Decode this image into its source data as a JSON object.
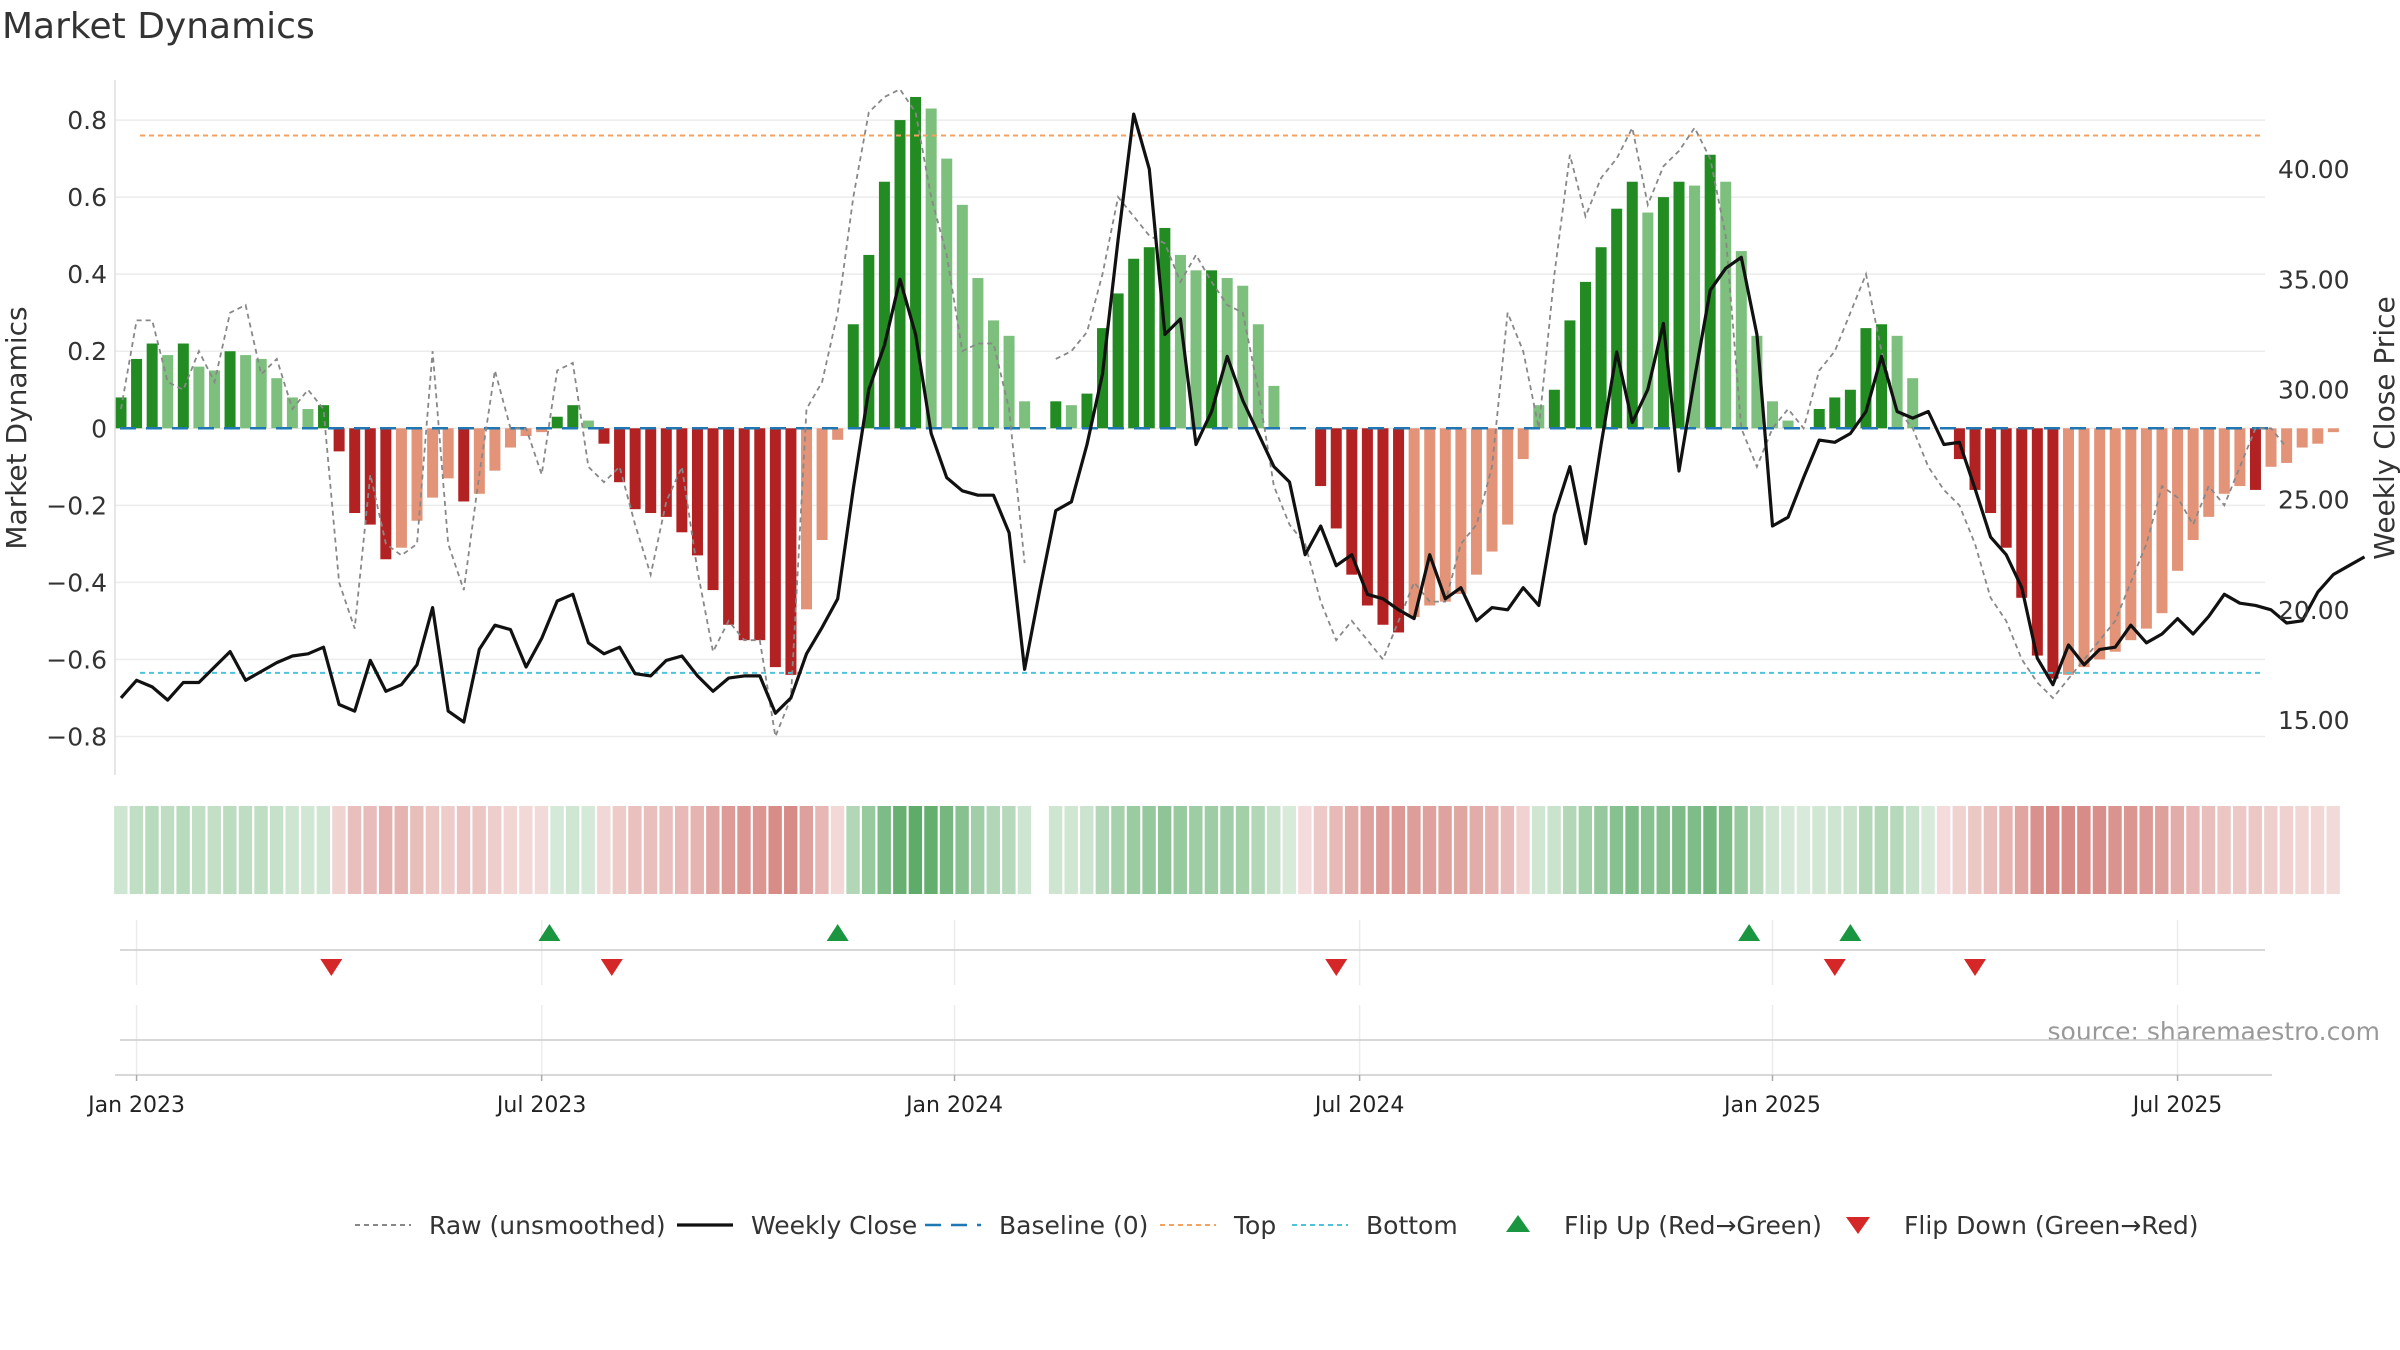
{
  "chart_data": {
    "type": "bar",
    "title": "Market Dynamics",
    "ylabel_left": "Market Dynamics",
    "ylabel_right": "Weekly Close Price",
    "source_note": "source: sharemaestro.com",
    "ylim_left": [
      -0.9,
      0.93
    ],
    "ylim_right": [
      12.5,
      44.5
    ],
    "left_ticks": [
      {
        "value": 0.8,
        "label": "0.8"
      },
      {
        "value": 0.6,
        "label": "0.6"
      },
      {
        "value": 0.4,
        "label": "0.4"
      },
      {
        "value": 0.2,
        "label": "0.2"
      },
      {
        "value": 0.0,
        "label": "0"
      },
      {
        "value": -0.2,
        "label": "−0.2"
      },
      {
        "value": -0.4,
        "label": "−0.4"
      },
      {
        "value": -0.6,
        "label": "−0.6"
      },
      {
        "value": -0.8,
        "label": "−0.8"
      }
    ],
    "right_ticks": [
      {
        "value": 40,
        "label": "40.00"
      },
      {
        "value": 35,
        "label": "35.00"
      },
      {
        "value": 30,
        "label": "30.00"
      },
      {
        "value": 25,
        "label": "25.00"
      },
      {
        "value": 20,
        "label": "20.00"
      },
      {
        "value": 15,
        "label": "15.00"
      }
    ],
    "x_ticks": [
      {
        "week": 1,
        "label": "Jan 2023"
      },
      {
        "week": 27,
        "label": "Jul 2023"
      },
      {
        "week": 53.5,
        "label": "Jan 2024"
      },
      {
        "week": 79.5,
        "label": "Jul 2024"
      },
      {
        "week": 106,
        "label": "Jan 2025"
      },
      {
        "week": 132,
        "label": "Jul 2025"
      }
    ],
    "top_level": 0.76,
    "bottom_level": -0.635,
    "colors": {
      "strong_up": "#228b22",
      "weak_up": "#7dbf7d",
      "strong_down": "#b22222",
      "weak_down": "#e39478",
      "close_line": "#111111",
      "raw_line": "#888888",
      "baseline": "#1f77b4",
      "top": "#f4a261",
      "bottom": "#4fc3d9",
      "flip_up": "#1a9641",
      "flip_down": "#d62728",
      "strip_up": "#4ea35a",
      "strip_down": "#c8605a"
    },
    "dynamics": [
      0.08,
      0.18,
      0.22,
      0.19,
      0.22,
      0.16,
      0.15,
      0.2,
      0.19,
      0.18,
      0.13,
      0.08,
      0.05,
      0.06,
      -0.06,
      -0.22,
      -0.25,
      -0.34,
      -0.31,
      -0.24,
      -0.18,
      -0.13,
      -0.19,
      -0.17,
      -0.11,
      -0.05,
      -0.02,
      -0.01,
      0.03,
      0.06,
      0.02,
      -0.04,
      -0.14,
      -0.21,
      -0.22,
      -0.23,
      -0.27,
      -0.33,
      -0.42,
      -0.51,
      -0.55,
      -0.55,
      -0.62,
      -0.64,
      -0.47,
      -0.29,
      -0.03,
      0.27,
      0.45,
      0.64,
      0.8,
      0.86,
      0.83,
      0.7,
      0.58,
      0.39,
      0.28,
      0.24,
      0.07,
      null,
      0.07,
      0.06,
      0.09,
      0.26,
      0.35,
      0.44,
      0.47,
      0.52,
      0.45,
      0.41,
      0.41,
      0.39,
      0.37,
      0.27,
      0.11,
      0.0,
      0.0,
      -0.15,
      -0.26,
      -0.38,
      -0.46,
      -0.51,
      -0.53,
      -0.49,
      -0.46,
      -0.45,
      -0.43,
      -0.38,
      -0.32,
      -0.25,
      -0.08,
      0.06,
      0.1,
      0.28,
      0.38,
      0.47,
      0.57,
      0.64,
      0.56,
      0.6,
      0.64,
      0.63,
      0.71,
      0.64,
      0.46,
      0.24,
      0.07,
      0.02,
      0.0,
      0.05,
      0.08,
      0.1,
      0.26,
      0.27,
      0.24,
      0.13,
      0.0,
      0.0,
      -0.08,
      -0.16,
      -0.22,
      -0.31,
      -0.44,
      -0.59,
      -0.65,
      -0.64,
      -0.62,
      -0.6,
      -0.58,
      -0.55,
      -0.52,
      -0.48,
      -0.37,
      -0.29,
      -0.23,
      -0.17,
      -0.15,
      -0.16,
      -0.1,
      -0.09,
      -0.05,
      -0.04,
      -0.01
    ],
    "raw": [
      0.05,
      0.28,
      0.28,
      0.12,
      0.1,
      0.2,
      0.12,
      0.3,
      0.32,
      0.14,
      0.18,
      0.05,
      0.1,
      0.05,
      -0.4,
      -0.52,
      -0.12,
      -0.3,
      -0.33,
      -0.3,
      0.2,
      -0.3,
      -0.42,
      -0.12,
      0.15,
      0.0,
      0.0,
      -0.12,
      0.15,
      0.17,
      -0.1,
      -0.14,
      -0.1,
      -0.25,
      -0.38,
      -0.19,
      -0.1,
      -0.37,
      -0.58,
      -0.5,
      -0.55,
      -0.55,
      -0.8,
      -0.7,
      0.05,
      0.12,
      0.3,
      0.6,
      0.82,
      0.86,
      0.88,
      0.82,
      0.6,
      0.45,
      0.2,
      0.22,
      0.22,
      0.05,
      -0.35,
      null,
      0.18,
      0.2,
      0.25,
      0.4,
      0.6,
      0.55,
      0.5,
      0.48,
      0.38,
      0.45,
      0.38,
      0.32,
      0.3,
      0.1,
      -0.15,
      -0.25,
      -0.3,
      -0.45,
      -0.55,
      -0.5,
      -0.55,
      -0.6,
      -0.5,
      -0.4,
      -0.45,
      -0.45,
      -0.3,
      -0.25,
      -0.1,
      0.3,
      0.2,
      0.0,
      0.4,
      0.71,
      0.55,
      0.65,
      0.7,
      0.78,
      0.58,
      0.68,
      0.72,
      0.78,
      0.7,
      0.5,
      0.0,
      -0.1,
      0.0,
      0.05,
      0.0,
      0.15,
      0.2,
      0.3,
      0.4,
      0.2,
      0.05,
      0.0,
      -0.1,
      -0.16,
      -0.2,
      -0.3,
      -0.44,
      -0.5,
      -0.6,
      -0.66,
      -0.7,
      -0.65,
      -0.6,
      -0.55,
      -0.5,
      -0.4,
      -0.3,
      -0.15,
      -0.18,
      -0.25,
      -0.15,
      -0.2,
      -0.1,
      0.0,
      0.0,
      -0.05
    ],
    "close": [
      16.0,
      16.8,
      16.5,
      15.9,
      16.7,
      16.7,
      17.4,
      18.1,
      16.8,
      17.2,
      17.6,
      17.9,
      18.0,
      18.3,
      15.7,
      15.4,
      17.7,
      16.3,
      16.6,
      17.5,
      20.1,
      15.4,
      14.9,
      18.2,
      19.3,
      19.1,
      17.4,
      18.7,
      20.4,
      20.7,
      18.5,
      18.0,
      18.3,
      17.1,
      17.0,
      17.7,
      17.9,
      17.0,
      16.3,
      16.9,
      17.0,
      17.0,
      15.3,
      16.0,
      18.0,
      19.2,
      20.5,
      25.5,
      30.0,
      32.0,
      35.0,
      32.5,
      28.0,
      26.0,
      25.4,
      25.2,
      25.2,
      23.5,
      17.3,
      21.0,
      24.5,
      24.9,
      27.5,
      30.7,
      36.8,
      42.5,
      40.0,
      32.5,
      33.2,
      27.5,
      29.0,
      31.5,
      29.5,
      28.0,
      26.5,
      25.8,
      22.5,
      23.8,
      22.0,
      22.5,
      20.7,
      20.5,
      20.0,
      19.6,
      22.5,
      20.5,
      21.0,
      19.5,
      20.1,
      20.0,
      21.0,
      20.2,
      24.3,
      26.5,
      23.0,
      27.5,
      31.7,
      28.5,
      30.0,
      33.0,
      26.3,
      30.5,
      34.5,
      35.5,
      36.0,
      32.5,
      23.8,
      24.2,
      26.0,
      27.7,
      27.6,
      28.0,
      29.0,
      31.5,
      29.0,
      28.7,
      29.0,
      27.5,
      27.6,
      25.5,
      23.3,
      22.5,
      21.0,
      17.8,
      16.6,
      18.4,
      17.5,
      18.2,
      18.3,
      19.3,
      18.5,
      18.9,
      19.6,
      18.9,
      19.7,
      20.7,
      20.3,
      20.2,
      20.0,
      19.4,
      19.5,
      20.8,
      21.6,
      22.0,
      22.4
    ],
    "flip_up_weeks": [
      27.5,
      46,
      104.5,
      111
    ],
    "flip_down_weeks": [
      13.5,
      31.5,
      78,
      110,
      119
    ],
    "legend": [
      {
        "type": "raw",
        "label": "Raw (unsmoothed)"
      },
      {
        "type": "close",
        "label": "Weekly Close"
      },
      {
        "type": "baseline",
        "label": "Baseline (0)"
      },
      {
        "type": "top",
        "label": "Top"
      },
      {
        "type": "bottom",
        "label": "Bottom"
      },
      {
        "type": "flip_up",
        "label": "Flip Up (Red→Green)"
      },
      {
        "type": "flip_down",
        "label": "Flip Down (Green→Red)"
      }
    ]
  }
}
